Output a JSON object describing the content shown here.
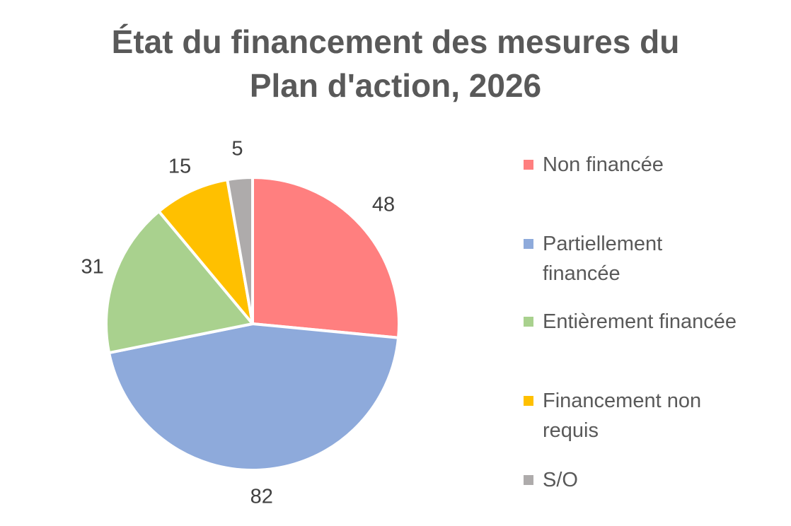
{
  "chart_data": {
    "type": "pie",
    "title_lines": [
      "État du financement des mesures du",
      "Plan d'action, 2026"
    ],
    "categories": [
      "Non financée",
      "Partiellement financée",
      "Entièrement financée",
      "Financement non requis",
      "S/O"
    ],
    "values": [
      48,
      82,
      31,
      15,
      5
    ],
    "colors": [
      "#ff7f7f",
      "#8eaadb",
      "#a9d18e",
      "#ffc000",
      "#aeabab"
    ],
    "legend_position": "right",
    "legend_lines": [
      [
        "Non financée"
      ],
      [
        "Partiellement",
        "financée"
      ],
      [
        "Entièrement financée"
      ],
      [
        "Financement non",
        "requis"
      ],
      [
        "S/O"
      ]
    ]
  }
}
